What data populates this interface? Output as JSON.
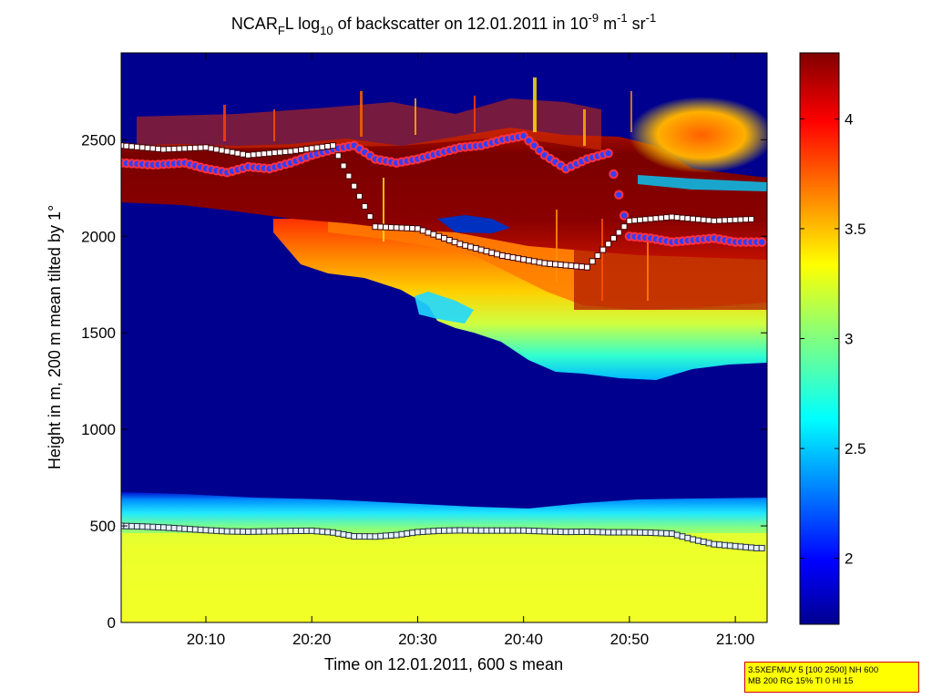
{
  "chart_data": {
    "type": "heatmap",
    "title": {
      "p1": "NCAR",
      "p1_sub": "F",
      "p2": "L log",
      "p2_sub": "10",
      "p3": " of backscatter on 12.01.2011 in 10",
      "p3_sup": "-9",
      "p4": " m",
      "p4_sup": "-1",
      "p5": " sr",
      "p5_sup": "-1"
    },
    "xlabel": "Time on 12.01.2011, 600 s mean",
    "ylabel": "Height in m, 200 m mean tilted by 1°",
    "xlim": [
      "20:02",
      "21:03"
    ],
    "ylim": [
      0,
      2950
    ],
    "x_ticks": [
      "20:10",
      "20:20",
      "20:30",
      "20:40",
      "20:50",
      "21:00"
    ],
    "x_tick_minutes": [
      10,
      20,
      30,
      40,
      50,
      60
    ],
    "y_ticks": [
      0,
      500,
      1000,
      1500,
      2000,
      2500
    ],
    "colorbar": {
      "colormap": "jet",
      "range": [
        1.7,
        4.3
      ],
      "ticks": [
        "2",
        "2.5",
        "3",
        "3.5",
        "4"
      ],
      "tick_values": [
        2,
        2.5,
        3,
        3.5,
        4
      ]
    },
    "layers": [
      {
        "name": "near-surface aerosol",
        "top_m": 650,
        "log10": 3.15
      },
      {
        "name": "mid aerosol layer",
        "base_m_start": 1950,
        "base_m_end": 1330,
        "log10": 3.3
      },
      {
        "name": "cloud layer",
        "base_m": 2150,
        "top_m": 2600,
        "log10": 4.2
      }
    ],
    "series": [
      {
        "marker": "white-squares-lower",
        "time_min": [
          2,
          4,
          6,
          8,
          10,
          12,
          14,
          16,
          18,
          20,
          22,
          24,
          26,
          28,
          30,
          32,
          34,
          36,
          38,
          40,
          42,
          44,
          46,
          48,
          50,
          52,
          54,
          56,
          58,
          60,
          62,
          63
        ],
        "height_m": [
          500,
          497,
          492,
          485,
          478,
          472,
          470,
          472,
          474,
          475,
          466,
          446,
          445,
          453,
          468,
          475,
          477,
          476,
          476,
          476,
          472,
          469,
          470,
          467,
          467,
          465,
          460,
          430,
          405,
          395,
          385,
          385
        ]
      },
      {
        "marker": "red-blue-circles",
        "time_min": [
          2,
          5,
          8,
          10,
          12,
          14,
          16,
          18,
          20,
          22,
          24,
          26,
          28,
          30,
          32,
          34,
          36,
          38,
          40,
          42,
          44,
          46,
          48,
          50,
          52,
          54,
          56,
          58,
          60,
          62,
          63
        ],
        "height_m": [
          2380,
          2370,
          2380,
          2350,
          2330,
          2360,
          2350,
          2380,
          2420,
          2450,
          2470,
          2400,
          2380,
          2400,
          2430,
          2460,
          2470,
          2500,
          2520,
          2420,
          2350,
          2400,
          2430,
          2000,
          1990,
          1970,
          1980,
          1990,
          1970,
          1970,
          1970
        ]
      },
      {
        "marker": "white-squares-upper",
        "time_min": [
          2,
          6,
          10,
          14,
          18,
          22,
          26,
          30,
          34,
          38,
          42,
          46,
          50,
          54,
          58,
          62
        ],
        "height_m": [
          2470,
          2450,
          2460,
          2420,
          2440,
          2470,
          2050,
          2040,
          1960,
          1900,
          1860,
          1840,
          2080,
          2100,
          2080,
          2090
        ]
      }
    ]
  },
  "info_box": {
    "line1": "3.5XEFMUV 5 [100 2500] NH 600",
    "line2": "MB 200 RG 15% TI 0 HI 15"
  },
  "colors": {
    "background": "#ffffff",
    "axis": "#000000",
    "info_bg": "#ffff00",
    "info_border": "#d00000"
  }
}
